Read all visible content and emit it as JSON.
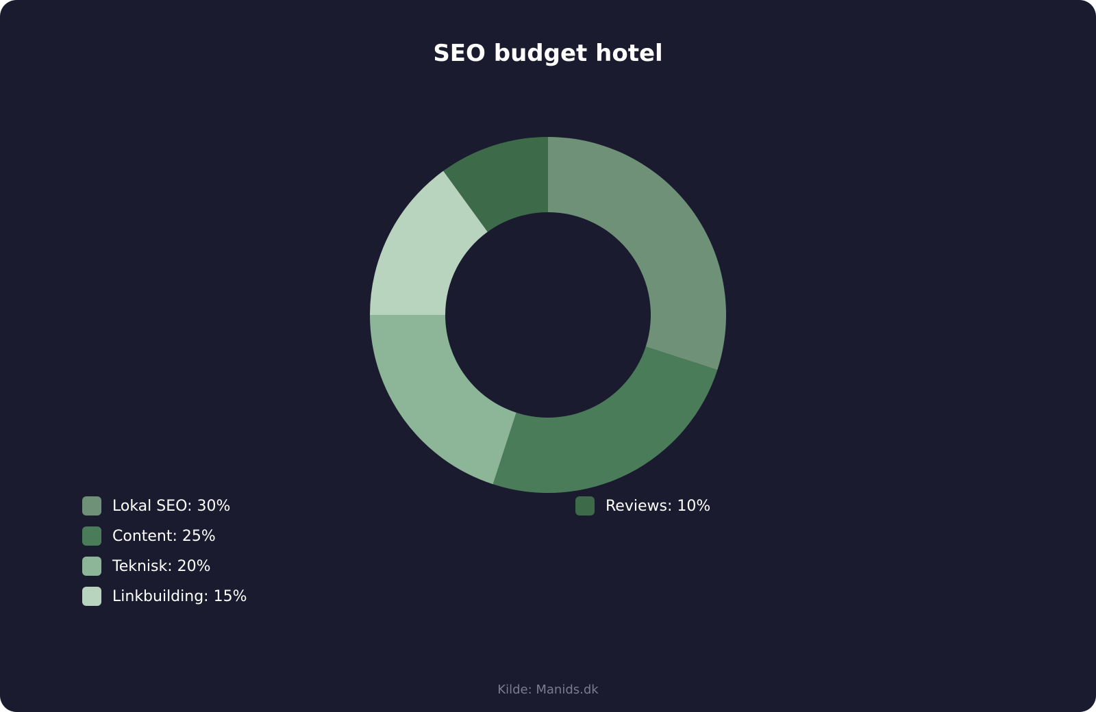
{
  "chart_data": {
    "type": "pie",
    "variant": "donut",
    "title": "SEO budget hotel",
    "categories": [
      "Lokal SEO",
      "Content",
      "Teknisk",
      "Linkbuilding",
      "Reviews"
    ],
    "values": [
      30,
      25,
      20,
      15,
      10
    ],
    "unit": "%",
    "colors": [
      "#6e9178",
      "#4a7c59",
      "#8db598",
      "#b8d4be",
      "#3d6b4a"
    ],
    "legend": {
      "position": "bottom-left",
      "labels": [
        "Lokal SEO: 30%",
        "Content: 25%",
        "Teknisk: 20%",
        "Linkbuilding: 15%",
        "Reviews: 10%"
      ]
    }
  },
  "footer": {
    "source": "Kilde: Manids.dk"
  },
  "colors": {
    "background": "#1b1b2f",
    "title": "#ffffff",
    "source": "#7c7c90"
  }
}
